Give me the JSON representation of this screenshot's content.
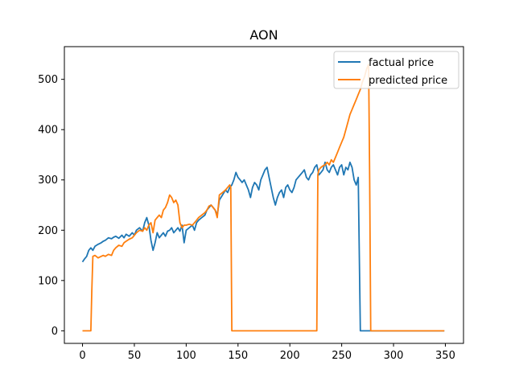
{
  "chart_data": {
    "type": "line",
    "title": "AON",
    "xlabel": "",
    "ylabel": "",
    "xlim": [
      -17.5,
      367.5
    ],
    "ylim": [
      -25,
      565
    ],
    "xticks": [
      0,
      50,
      100,
      150,
      200,
      250,
      300,
      350
    ],
    "yticks": [
      0,
      100,
      200,
      300,
      400,
      500
    ],
    "grid": false,
    "legend_position": "top-right",
    "series": [
      {
        "name": "factual price",
        "color": "#1f77b4",
        "x": [
          0,
          2,
          4,
          6,
          8,
          10,
          12,
          15,
          18,
          20,
          22,
          25,
          28,
          30,
          32,
          35,
          38,
          40,
          42,
          45,
          48,
          50,
          52,
          55,
          58,
          60,
          62,
          64,
          66,
          68,
          70,
          72,
          74,
          76,
          78,
          80,
          82,
          84,
          86,
          88,
          90,
          92,
          94,
          96,
          98,
          100,
          103,
          106,
          108,
          110,
          112,
          115,
          118,
          120,
          122,
          124,
          126,
          128,
          130,
          132,
          135,
          138,
          140,
          142,
          144,
          146,
          148,
          150,
          152,
          154,
          156,
          158,
          160,
          162,
          164,
          166,
          168,
          170,
          172,
          174,
          176,
          178,
          180,
          182,
          184,
          186,
          188,
          190,
          192,
          194,
          196,
          198,
          200,
          202,
          204,
          206,
          208,
          210,
          212,
          214,
          216,
          218,
          220,
          222,
          224,
          226,
          228,
          230,
          232,
          234,
          236,
          238,
          240,
          242,
          244,
          246,
          248,
          250,
          252,
          254,
          256,
          258,
          260,
          262,
          264,
          266,
          268,
          280,
          300,
          320,
          349
        ],
        "y": [
          137,
          143,
          148,
          160,
          165,
          160,
          168,
          172,
          175,
          178,
          180,
          185,
          183,
          186,
          188,
          184,
          190,
          185,
          192,
          188,
          195,
          190,
          200,
          205,
          198,
          215,
          225,
          210,
          180,
          160,
          175,
          195,
          185,
          190,
          195,
          188,
          198,
          200,
          205,
          195,
          200,
          205,
          198,
          210,
          175,
          200,
          205,
          210,
          200,
          215,
          220,
          225,
          230,
          240,
          245,
          250,
          245,
          240,
          230,
          260,
          270,
          280,
          275,
          285,
          290,
          300,
          315,
          305,
          300,
          295,
          300,
          290,
          280,
          265,
          285,
          295,
          290,
          280,
          300,
          310,
          320,
          325,
          305,
          285,
          265,
          250,
          265,
          275,
          280,
          265,
          285,
          290,
          280,
          275,
          285,
          300,
          305,
          310,
          315,
          320,
          305,
          300,
          310,
          315,
          325,
          330,
          310,
          315,
          320,
          335,
          320,
          315,
          325,
          330,
          320,
          310,
          325,
          330,
          310,
          325,
          320,
          335,
          325,
          300,
          290,
          305,
          0,
          0,
          0,
          0,
          0
        ]
      },
      {
        "name": "predicted price",
        "color": "#ff7f0e",
        "x": [
          0,
          5,
          8,
          9,
          10,
          12,
          15,
          18,
          20,
          22,
          25,
          28,
          30,
          32,
          35,
          38,
          40,
          42,
          45,
          48,
          50,
          52,
          55,
          58,
          60,
          62,
          64,
          66,
          68,
          70,
          72,
          74,
          76,
          78,
          80,
          82,
          84,
          86,
          88,
          90,
          92,
          94,
          96,
          98,
          100,
          103,
          106,
          108,
          110,
          112,
          115,
          118,
          120,
          122,
          124,
          126,
          128,
          130,
          132,
          135,
          138,
          140,
          142,
          143,
          144,
          150,
          180,
          200,
          226,
          227,
          228,
          230,
          232,
          234,
          236,
          238,
          240,
          242,
          244,
          246,
          248,
          250,
          252,
          254,
          256,
          258,
          260,
          262,
          264,
          266,
          268,
          270,
          272,
          274,
          276,
          277,
          278,
          300,
          320,
          349
        ],
        "y": [
          0,
          0,
          0,
          80,
          148,
          150,
          145,
          148,
          150,
          148,
          152,
          150,
          160,
          165,
          170,
          168,
          175,
          178,
          182,
          185,
          190,
          195,
          200,
          198,
          205,
          200,
          210,
          215,
          195,
          220,
          225,
          230,
          225,
          240,
          245,
          255,
          270,
          265,
          255,
          260,
          250,
          215,
          205,
          210,
          210,
          212,
          210,
          215,
          220,
          225,
          230,
          235,
          240,
          248,
          250,
          245,
          240,
          225,
          270,
          275,
          280,
          285,
          290,
          285,
          0,
          0,
          0,
          0,
          0,
          310,
          320,
          325,
          328,
          330,
          335,
          330,
          340,
          335,
          345,
          355,
          365,
          375,
          385,
          400,
          415,
          430,
          440,
          450,
          460,
          470,
          480,
          495,
          505,
          520,
          530,
          300,
          0,
          0,
          0,
          0
        ]
      }
    ]
  }
}
